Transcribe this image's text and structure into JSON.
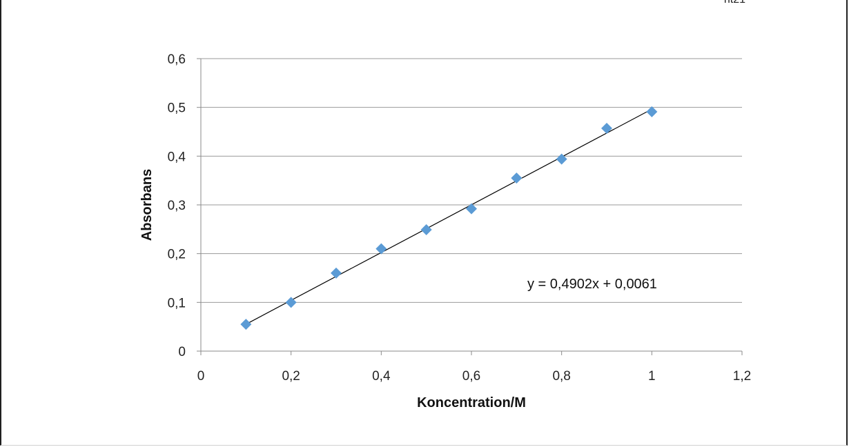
{
  "corner_label": "nt21",
  "chart_data": {
    "type": "scatter",
    "xlabel": "Koncentration/M",
    "ylabel": "Absorbans",
    "xlim": [
      0,
      1.2
    ],
    "ylim": [
      0,
      0.6
    ],
    "x_ticks": [
      "0",
      "0,2",
      "0,4",
      "0,6",
      "0,8",
      "1",
      "1,2"
    ],
    "y_ticks": [
      "0",
      "0,1",
      "0,2",
      "0,3",
      "0,4",
      "0,5",
      "0,6"
    ],
    "grid": "horizontal",
    "marker_color": "#5b9bd5",
    "marker_shape": "diamond",
    "series": [
      {
        "x": [
          0.1,
          0.2,
          0.3,
          0.4,
          0.5,
          0.6,
          0.7,
          0.8,
          0.9,
          1.0
        ],
        "y": [
          0.055,
          0.1,
          0.16,
          0.21,
          0.249,
          0.292,
          0.355,
          0.394,
          0.457,
          0.491
        ]
      }
    ],
    "trendline": {
      "type": "linear",
      "slope": 0.4902,
      "intercept": 0.0061,
      "x_range": [
        0.1,
        1.0
      ],
      "equation_label": "y = 0,4902x + 0,0061"
    }
  }
}
